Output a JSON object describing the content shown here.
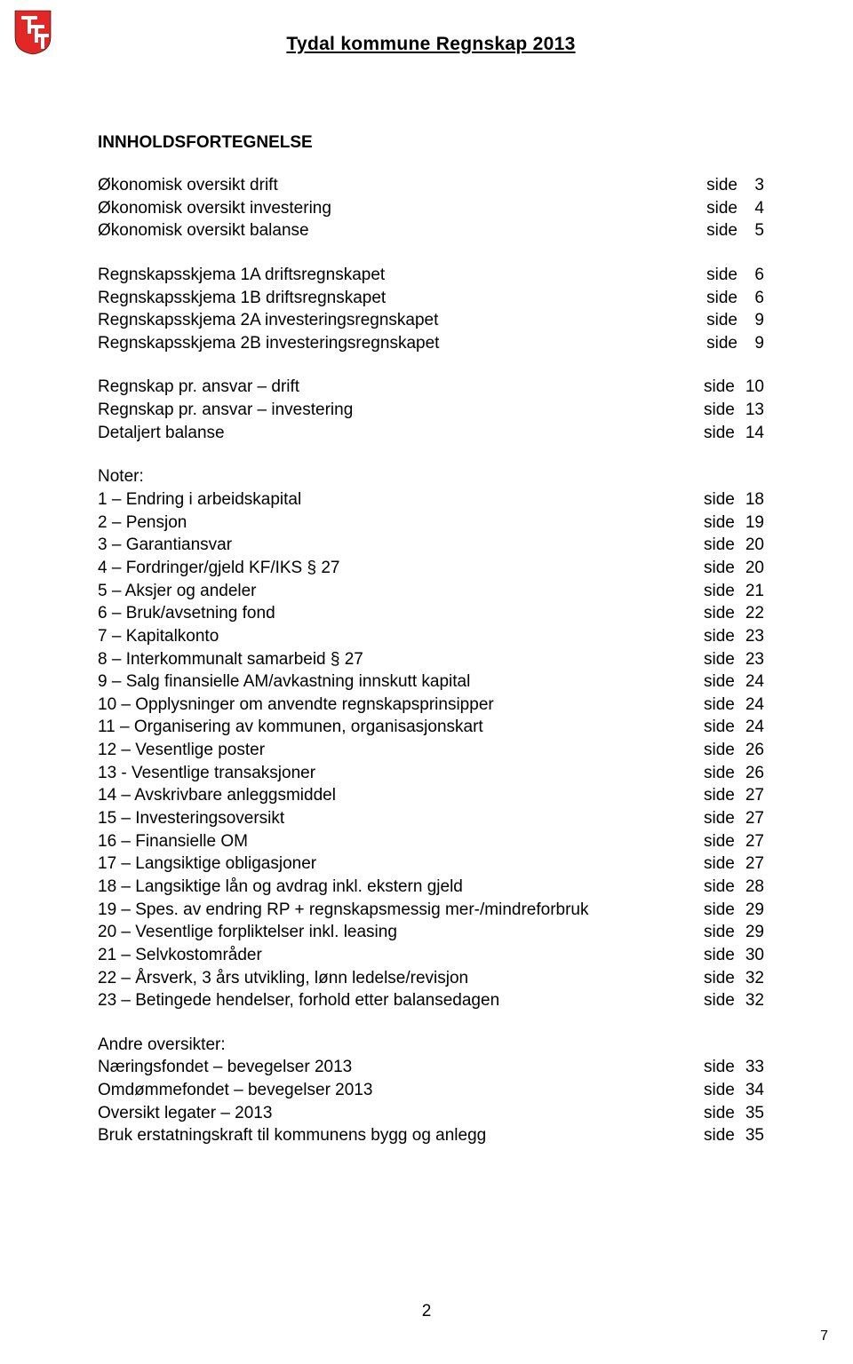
{
  "header": {
    "org": "Tydal kommune",
    "docTitle": "Regnskap 2013",
    "combined": "Tydal kommune     Regnskap 2013"
  },
  "logo": {
    "shield_fill": "#e22826",
    "letter": "T",
    "letter_fill": "#ffffff"
  },
  "title": "INNHOLDSFORTEGNELSE",
  "sideWord": "side",
  "blocks": [
    {
      "rows": [
        {
          "label": "Økonomisk oversikt drift",
          "page": "3"
        },
        {
          "label": "Økonomisk oversikt investering",
          "page": "4"
        },
        {
          "label": "Økonomisk oversikt balanse",
          "page": "5"
        }
      ]
    },
    {
      "rows": [
        {
          "label": "Regnskapsskjema 1A driftsregnskapet",
          "page": "6"
        },
        {
          "label": "Regnskapsskjema 1B driftsregnskapet",
          "page": "6"
        },
        {
          "label": "Regnskapsskjema 2A investeringsregnskapet",
          "page": "9"
        },
        {
          "label": "Regnskapsskjema 2B investeringsregnskapet",
          "page": "9"
        }
      ]
    },
    {
      "rows": [
        {
          "label": "Regnskap pr. ansvar – drift",
          "page": "10"
        },
        {
          "label": "Regnskap pr. ansvar – investering",
          "page": "13"
        },
        {
          "label": "Detaljert balanse",
          "page": "14"
        }
      ]
    },
    {
      "heading": "Noter:",
      "rows": [
        {
          "label": " 1 – Endring i arbeidskapital",
          "page": "18"
        },
        {
          "label": " 2 – Pensjon",
          "page": "19"
        },
        {
          "label": " 3 – Garantiansvar",
          "page": "20"
        },
        {
          "label": " 4 – Fordringer/gjeld KF/IKS § 27",
          "page": "20"
        },
        {
          "label": " 5 – Aksjer og andeler",
          "page": "21"
        },
        {
          "label": " 6 – Bruk/avsetning fond",
          "page": "22"
        },
        {
          "label": " 7 – Kapitalkonto",
          "page": "23"
        },
        {
          "label": " 8 – Interkommunalt samarbeid § 27",
          "page": "23"
        },
        {
          "label": " 9 – Salg finansielle AM/avkastning innskutt kapital",
          "page": "24"
        },
        {
          "label": "10 – Opplysninger om anvendte regnskapsprinsipper",
          "page": "24"
        },
        {
          "label": "11 – Organisering av kommunen, organisasjonskart",
          "page": "24"
        },
        {
          "label": "12 – Vesentlige poster",
          "page": "26"
        },
        {
          "label": "13 - Vesentlige transaksjoner",
          "page": "26"
        },
        {
          "label": "14 – Avskrivbare anleggsmiddel",
          "page": "27"
        },
        {
          "label": "15 – Investeringsoversikt",
          "page": "27"
        },
        {
          "label": "16 – Finansielle OM",
          "page": "27"
        },
        {
          "label": "17 – Langsiktige obligasjoner",
          "page": "27"
        },
        {
          "label": "18 – Langsiktige lån og avdrag inkl. ekstern gjeld",
          "page": "28"
        },
        {
          "label": "19 – Spes. av endring RP + regnskapsmessig mer-/mindreforbruk",
          "page": "29"
        },
        {
          "label": "20 – Vesentlige forpliktelser inkl. leasing",
          "page": "29"
        },
        {
          "label": "21 – Selvkostområder",
          "page": "30"
        },
        {
          "label": "22 – Årsverk, 3 års utvikling, lønn ledelse/revisjon",
          "page": "32"
        },
        {
          "label": "23 – Betingede hendelser, forhold etter balansedagen",
          "page": "32"
        }
      ]
    },
    {
      "heading": "Andre oversikter:",
      "rows": [
        {
          "label": "Næringsfondet – bevegelser 2013",
          "page": "33"
        },
        {
          "label": "Omdømmefondet – bevegelser 2013",
          "page": "34"
        },
        {
          "label": "Oversikt legater – 2013",
          "page": "35"
        },
        {
          "label": "Bruk erstatningskraft til kommunens bygg og anlegg",
          "page": "35"
        }
      ]
    }
  ],
  "footerPage": "2",
  "cornerPage": "7"
}
